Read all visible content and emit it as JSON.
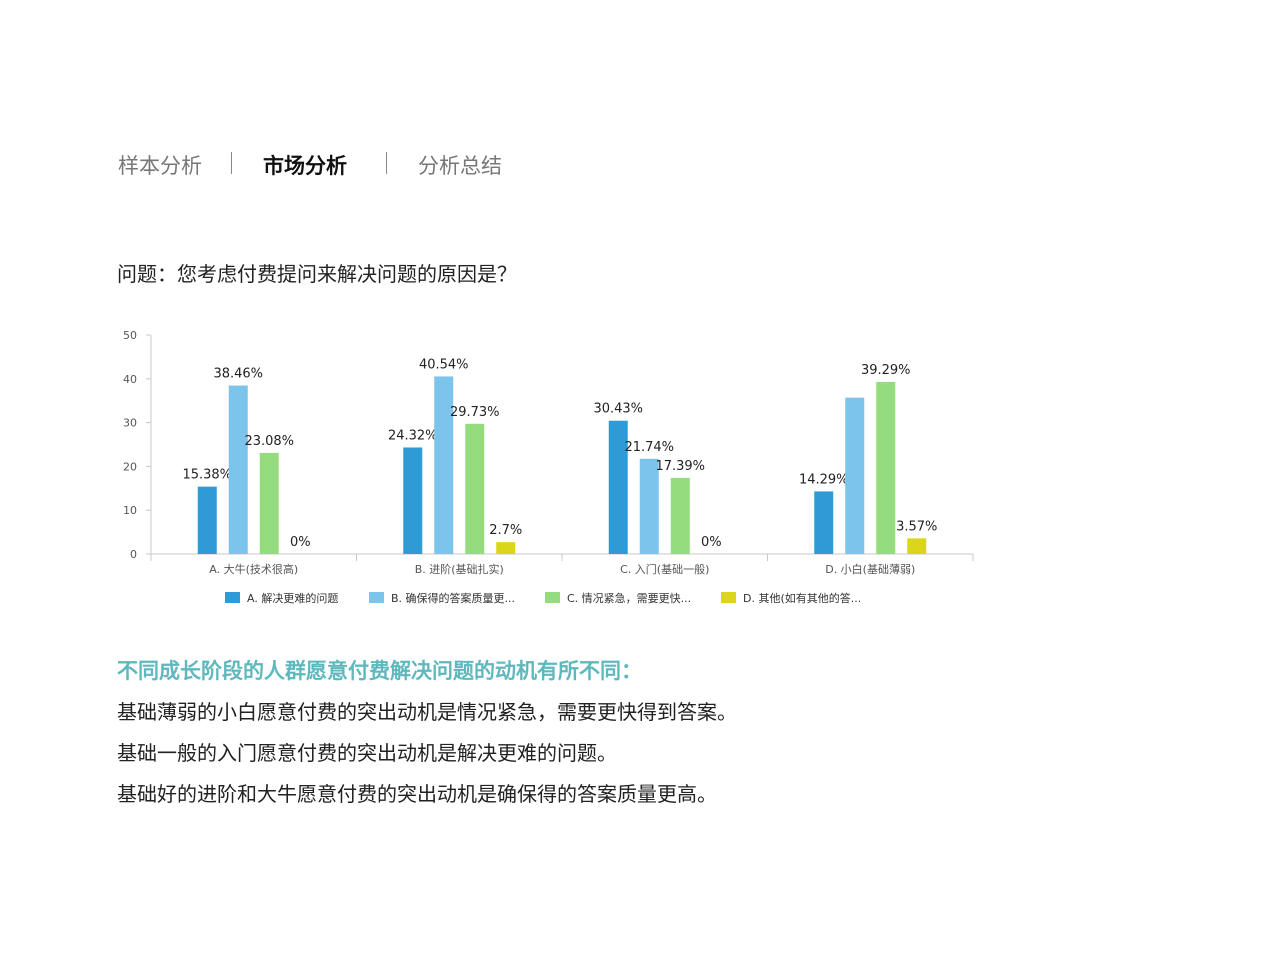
{
  "nav": {
    "tabs": [
      {
        "label": "样本分析",
        "active": false
      },
      {
        "label": "市场分析",
        "active": true
      },
      {
        "label": "分析总结",
        "active": false
      }
    ]
  },
  "question": "问题：您考虑付费提问来解决问题的原因是？",
  "chart_data": {
    "type": "bar",
    "title": "",
    "xlabel": "",
    "ylabel": "",
    "ylim": [
      0,
      50
    ],
    "yticks": [
      "0",
      "10",
      "20",
      "30",
      "40",
      "50"
    ],
    "grid": false,
    "legend_position": "bottom",
    "categories": [
      "A. 大牛(技术很高)",
      "B. 进阶(基础扎实)",
      "C. 入门(基础一般)",
      "D. 小白(基础薄弱)"
    ],
    "series": [
      {
        "name": "A. 解决更难的问题",
        "color": "#2e9bd6",
        "values": [
          15.38,
          24.32,
          30.43,
          14.29
        ],
        "labels": [
          "15.38%",
          "24.32%",
          "30.43%",
          "14.29%"
        ]
      },
      {
        "name": "B. 确保得的答案质量更...",
        "color": "#7cc4ec",
        "values": [
          38.46,
          40.54,
          21.74,
          35.7
        ],
        "labels": [
          "38.46%",
          "40.54%",
          "21.74%",
          ""
        ]
      },
      {
        "name": "C. 情况紧急，需要更快...",
        "color": "#94dc7e",
        "values": [
          23.08,
          29.73,
          17.39,
          39.29
        ],
        "labels": [
          "23.08%",
          "29.73%",
          "17.39%",
          "39.29%"
        ]
      },
      {
        "name": "D. 其他(如有其他的答...",
        "color": "#dcd61a",
        "values": [
          0,
          2.7,
          0,
          3.57
        ],
        "labels": [
          "0%",
          "2.7%",
          "0%",
          "3.57%"
        ]
      }
    ]
  },
  "findings": {
    "title": "不同成长阶段的人群愿意付费解决问题的动机有所不同：",
    "lines": [
      "基础薄弱的小白愿意付费的突出动机是情况紧急，需要更快得到答案。",
      "基础一般的入门愿意付费的突出动机是解决更难的问题。",
      "基础好的进阶和大牛愿意付费的突出动机是确保得的答案质量更高。"
    ]
  }
}
